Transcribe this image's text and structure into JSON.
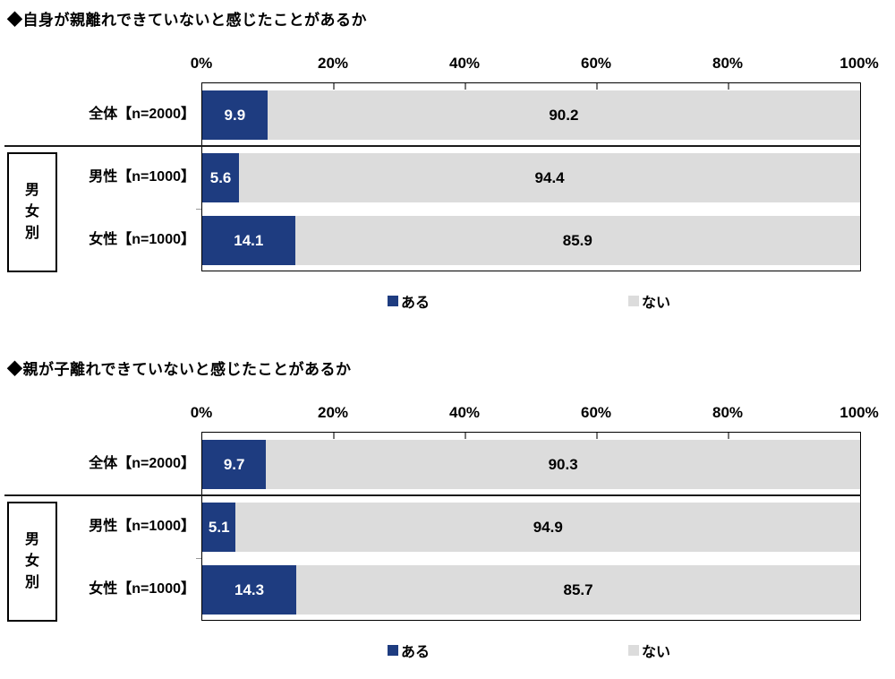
{
  "page": {
    "background": "#ffffff"
  },
  "colors": {
    "aru": "#1e3c80",
    "nai": "#dcdcdc",
    "plot_border": "#000000",
    "separator": "#1a1a1a",
    "tick": "#777777",
    "value_text_on_aru": "#ffffff",
    "value_text_on_nai": "#000000"
  },
  "group_label": "男女別",
  "chart_data": [
    {
      "type": "bar",
      "orientation": "horizontal",
      "stacked": true,
      "title": "◆自身が親離れできていないと感じたことがあるか",
      "categories": [
        "全体【n=2000】",
        "男性【n=1000】",
        "女性【n=1000】"
      ],
      "series": [
        {
          "name": "ある",
          "color": "#1e3c80",
          "values": [
            9.9,
            5.6,
            14.1
          ]
        },
        {
          "name": "ない",
          "color": "#dcdcdc",
          "values": [
            90.2,
            94.4,
            85.9
          ]
        }
      ],
      "x_ticks": [
        "0%",
        "20%",
        "40%",
        "60%",
        "80%",
        "100%"
      ],
      "xlim": [
        0,
        100
      ],
      "grid": false,
      "legend_position": "bottom",
      "group_label": "男女別"
    },
    {
      "type": "bar",
      "orientation": "horizontal",
      "stacked": true,
      "title": "◆親が子離れできていないと感じたことがあるか",
      "categories": [
        "全体【n=2000】",
        "男性【n=1000】",
        "女性【n=1000】"
      ],
      "series": [
        {
          "name": "ある",
          "color": "#1e3c80",
          "values": [
            9.7,
            5.1,
            14.3
          ]
        },
        {
          "name": "ない",
          "color": "#dcdcdc",
          "values": [
            90.3,
            94.9,
            85.7
          ]
        }
      ],
      "x_ticks": [
        "0%",
        "20%",
        "40%",
        "60%",
        "80%",
        "100%"
      ],
      "xlim": [
        0,
        100
      ],
      "grid": false,
      "legend_position": "bottom",
      "group_label": "男女別"
    }
  ]
}
